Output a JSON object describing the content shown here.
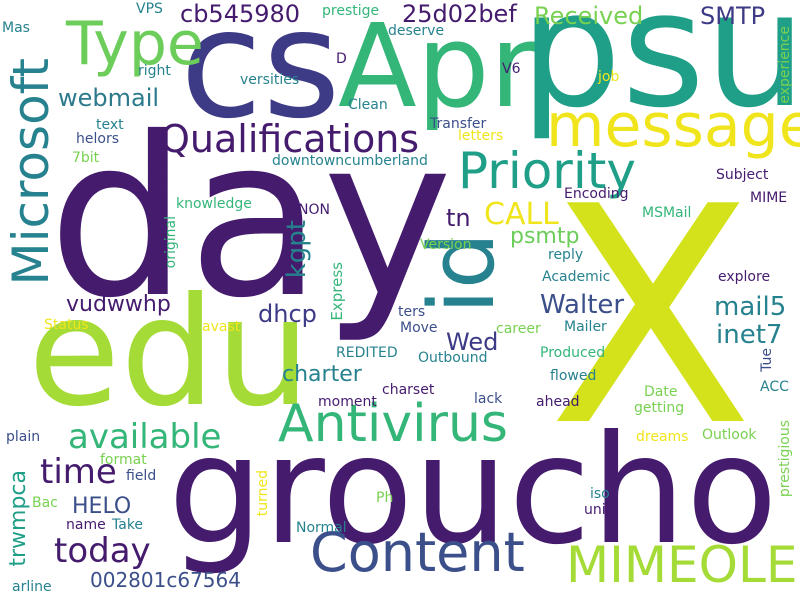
{
  "words": {
    "day": "day",
    "x": "X",
    "groucho": "groucho",
    "cs": "cs",
    "apr": "Apr",
    "psu": "psu",
    "edu": "edu",
    "id": "id",
    "message": "message",
    "microsoft": "Microsoft",
    "priority": "Priority",
    "content": "Content",
    "mimeole": "MIMEOLE",
    "antivirus": "Antivirus",
    "qualifications": "Qualifications",
    "type": "Type",
    "available": "available",
    "today": "today",
    "time": "time",
    "webmail": "webmail",
    "call": "CALL",
    "cb545980": "cb545980",
    "t25d02bef": "25d02bef",
    "received": "Received",
    "smtp": "SMTP",
    "walter": "Walter",
    "mail5": "mail5",
    "inet7": "inet7",
    "kgpt": "kgpt",
    "tn": "tn",
    "psmtp": "psmtp",
    "dhcp": "dhcp",
    "wed": "Wed",
    "charter": "charter",
    "vudwwhp": "vudwwhp",
    "helo": "HELO",
    "trwmpca": "trwmpca",
    "n002801c67564": "002801c67564",
    "express": "Express",
    "downtowncumberland": "downtowncumberland",
    "encoding": "Encoding",
    "subject": "Subject",
    "mime": "MIME",
    "msmail": "MSMail",
    "knowledge": "knowledge",
    "non": "NON",
    "version": "Version",
    "reply": "reply",
    "academic": "Academic",
    "explore": "explore",
    "ters": "ters",
    "move": "Move",
    "career": "career",
    "mailer": "Mailer",
    "tue": "Tue",
    "acc": "ACC",
    "produced": "Produced",
    "flowed": "flowed",
    "outbound": "Outbound",
    "redited": "REDITED",
    "charset": "charset",
    "moment": "moment",
    "lack": "lack",
    "ahead": "ahead",
    "date": "Date",
    "getting": "getting",
    "dreams": "dreams",
    "outlook": "Outlook",
    "prestigious": "prestigious",
    "plain": "plain",
    "format": "format",
    "field": "field",
    "bac": "Bac",
    "name": "name",
    "take": "Take",
    "turned": "turned",
    "ph": "Ph",
    "normal": "Normal",
    "iso": "iso",
    "uni": "uni",
    "arline": "arline",
    "status": "Status",
    "avast": "avast",
    "original": "original",
    "vps": "VPS",
    "prestige": "prestige",
    "deserve": "deserve",
    "mas": "Mas",
    "right": "right",
    "versities": "versities",
    "d": "D",
    "v6": "V6",
    "job": "job",
    "experience": "experience",
    "clean": "Clean",
    "text": "text",
    "helors": "helors",
    "transfer": "Transfer",
    "letters": "letters",
    "bit7": "7bit"
  }
}
